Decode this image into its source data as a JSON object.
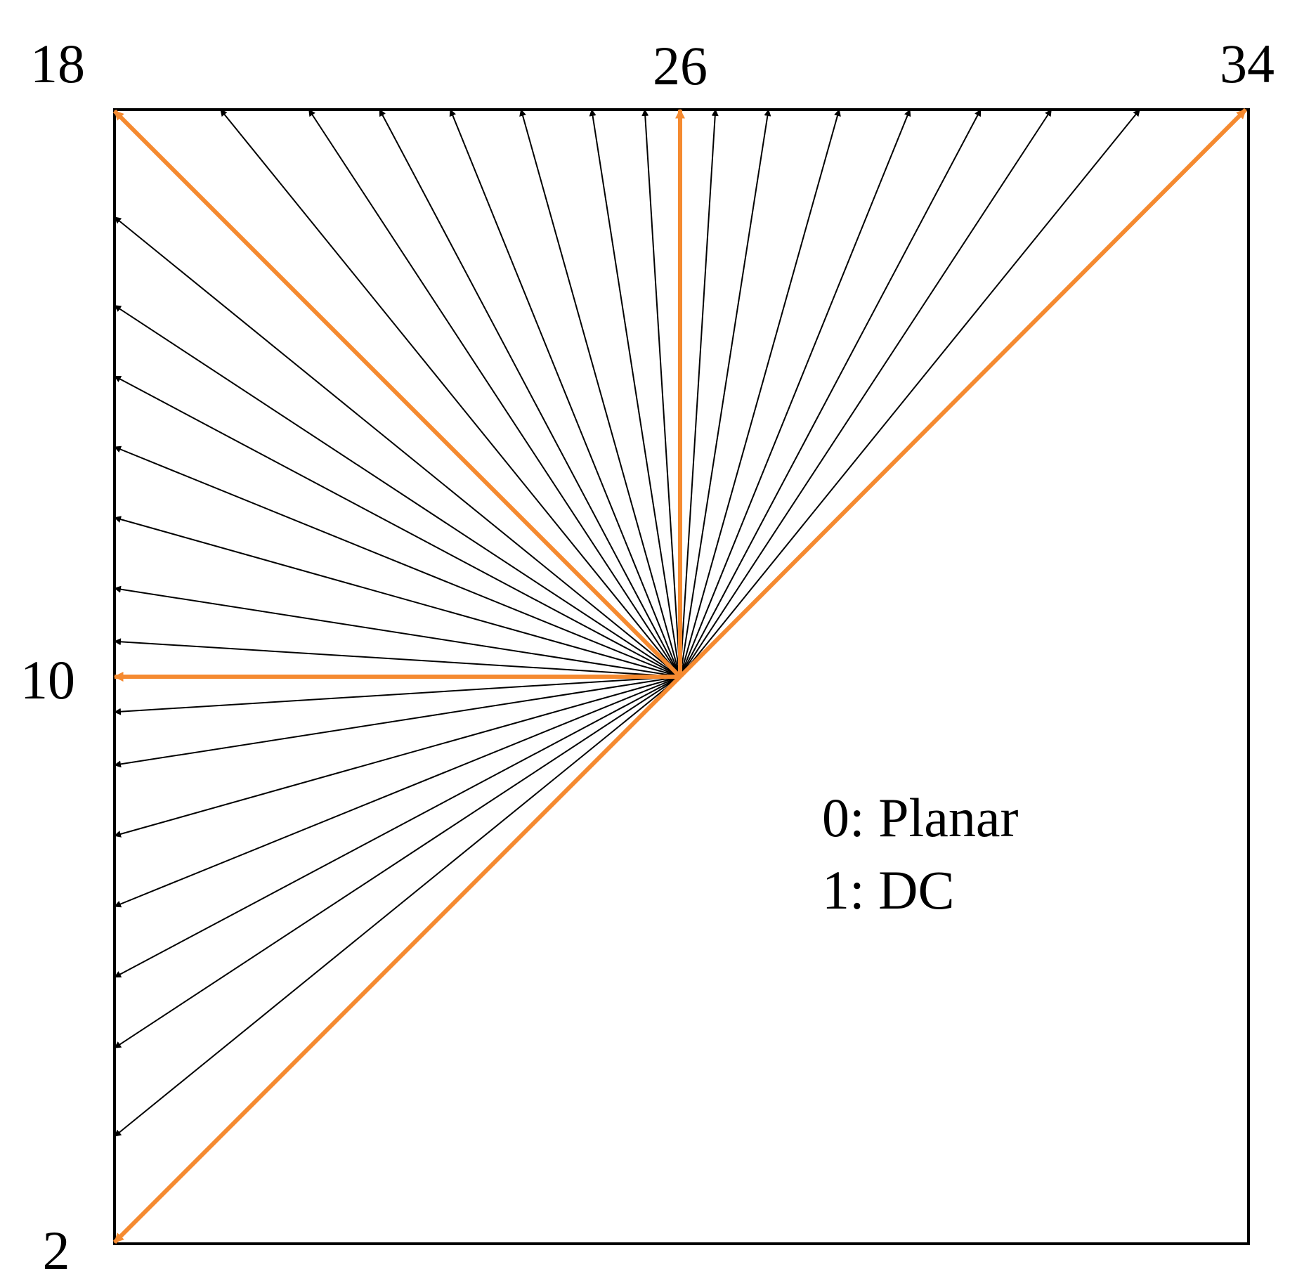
{
  "diagram": {
    "mode_labels": {
      "top_left": "18",
      "top_center": "26",
      "top_right": "34",
      "left_middle": "10",
      "bottom_left": "2"
    },
    "legend": [
      "0: Planar",
      "1: DC"
    ],
    "colors": {
      "frame": "#000000",
      "angular_mode": "#000000",
      "highlight_mode": "#F58A30"
    },
    "angular_modes": {
      "first": 2,
      "last": 34,
      "highlighted": [
        2,
        10,
        18,
        26,
        34
      ]
    }
  }
}
